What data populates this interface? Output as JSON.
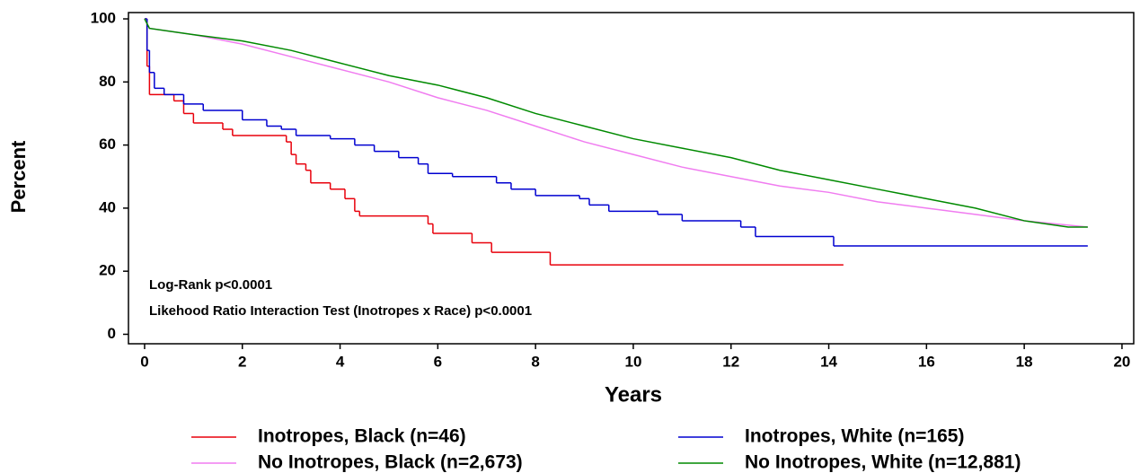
{
  "chart_data": {
    "type": "line",
    "x_label": "Years",
    "y_label": "Percent",
    "annotations": [
      "Log-Rank p<0.0001",
      "Likehood Ratio Interaction Test (Inotropes x Race) p<0.0001"
    ],
    "xlim": [
      -0.33,
      20.24
    ],
    "ylim": [
      -3,
      102
    ],
    "xticks": [
      0,
      2,
      4,
      6,
      8,
      10,
      12,
      14,
      16,
      18,
      20
    ],
    "yticks": [
      0,
      20,
      40,
      60,
      80,
      100
    ],
    "series": [
      {
        "name": "Inotropes, Black (n=46)",
        "color": "#e8000b",
        "step": true,
        "x": [
          0,
          0.05,
          0.1,
          0.6,
          0.8,
          1.0,
          1.6,
          1.8,
          2.9,
          3.0,
          3.1,
          3.3,
          3.4,
          3.8,
          4.1,
          4.3,
          4.4,
          5.8,
          5.9,
          6.7,
          7.1,
          8.3,
          14.3
        ],
        "values": [
          100,
          85,
          76,
          74,
          70,
          67,
          65,
          63,
          61,
          57,
          54,
          52,
          48,
          46,
          43,
          39,
          37.5,
          35,
          32,
          29,
          26,
          22,
          22
        ]
      },
      {
        "name": "No Inotropes, Black (n=2,673)",
        "color": "#f07cf0",
        "step": false,
        "x": [
          0,
          0.1,
          1,
          2,
          3,
          4,
          5,
          6,
          7,
          8,
          9,
          10,
          11,
          12,
          13,
          14,
          15,
          16,
          17,
          18,
          19.3
        ],
        "values": [
          100,
          97,
          95,
          92,
          88,
          84,
          80,
          75,
          71,
          66,
          61,
          57,
          53,
          50,
          47,
          45,
          42,
          40,
          38,
          36,
          34
        ]
      },
      {
        "name": "Inotropes, White (n=165)",
        "color": "#0000d0",
        "step": true,
        "x": [
          0,
          0.05,
          0.1,
          0.2,
          0.4,
          0.8,
          1.2,
          2.0,
          2.5,
          2.8,
          3.1,
          3.8,
          4.3,
          4.7,
          5.2,
          5.6,
          5.8,
          6.3,
          7.2,
          7.5,
          8.0,
          8.9,
          9.1,
          9.5,
          10.5,
          11.0,
          12.2,
          12.5,
          14.1,
          19.3
        ],
        "values": [
          100,
          90,
          83,
          78,
          76,
          73,
          71,
          68,
          66,
          65,
          63,
          62,
          60,
          58,
          56,
          54,
          51,
          50,
          48,
          46,
          44,
          43,
          41,
          39,
          38,
          36,
          34,
          31,
          28,
          28
        ]
      },
      {
        "name": "No Inotropes, White (n=12,881)",
        "color": "#008a00",
        "step": false,
        "x": [
          0,
          0.1,
          1,
          2,
          3,
          4,
          5,
          6,
          7,
          8,
          9,
          10,
          11,
          12,
          13,
          14,
          15,
          16,
          17,
          18,
          18.9,
          19.3
        ],
        "values": [
          100,
          97,
          95,
          93,
          90,
          86,
          82,
          79,
          75,
          70,
          66,
          62,
          59,
          56,
          52,
          49,
          46,
          43,
          40,
          36,
          34,
          34
        ]
      }
    ]
  }
}
